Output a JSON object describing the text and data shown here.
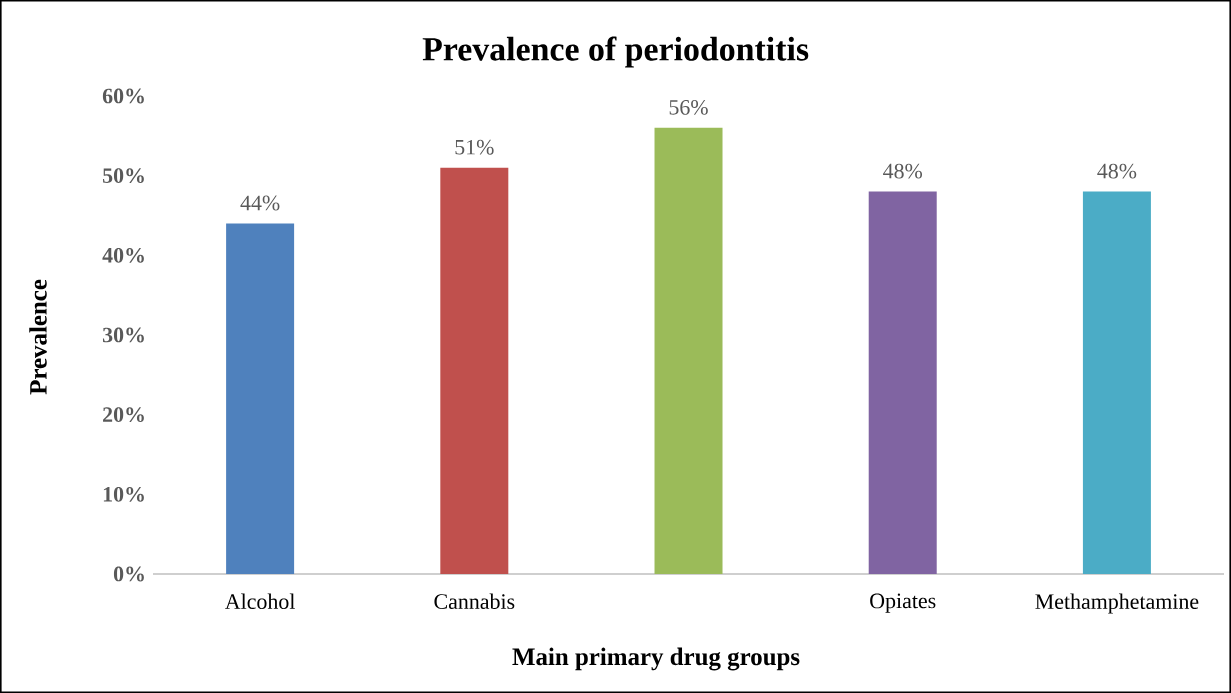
{
  "chart_data": {
    "type": "bar",
    "title": "Prevalence of periodontitis",
    "xlabel": "Main primary drug groups",
    "ylabel": "Prevalence",
    "categories": [
      "Alcohol",
      "Cannabis",
      null,
      "Opiates",
      "Methamphetamine"
    ],
    "values": [
      44,
      51,
      56,
      48,
      48
    ],
    "colors": [
      "#4f81bd",
      "#c0504d",
      "#9bbb59",
      "#8064a2",
      "#4bacc6"
    ],
    "value_labels": [
      "44%",
      "51%",
      "56%",
      "48%",
      "48%"
    ],
    "ylim": [
      0,
      60
    ],
    "yticks": [
      {
        "value": 0,
        "label": "0%"
      },
      {
        "value": 10,
        "label": "10%"
      },
      {
        "value": 20,
        "label": "20%"
      },
      {
        "value": 30,
        "label": "30%"
      },
      {
        "value": 40,
        "label": "40%"
      },
      {
        "value": 50,
        "label": "50%"
      },
      {
        "value": 60,
        "label": "60%"
      }
    ]
  }
}
